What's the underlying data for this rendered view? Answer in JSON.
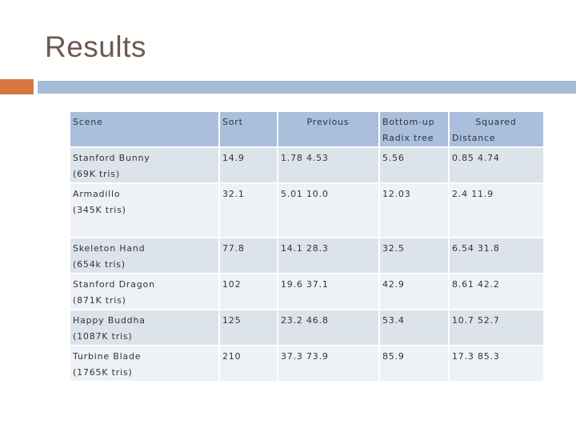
{
  "title": "Results",
  "table": {
    "headers": {
      "scene": "Scene",
      "sort": "Sort",
      "previous": "Previous",
      "bottom_up_1": "Bottom-up",
      "bottom_up_2": "Radix tree",
      "squared_1": "Squared",
      "squared_2": "Distance"
    },
    "rows": [
      {
        "name": "Stanford Bunny",
        "tris": "(69K tris)",
        "sort": "14.9",
        "previous": "1.78 4.53",
        "bottom_up": "5.56",
        "squared": "0.85 4.74"
      },
      {
        "name": "Armadillo",
        "tris": "(345K tris)",
        "sort": "32.1",
        "previous": "5.01 10.0",
        "bottom_up": "12.03",
        "squared": "2.4 11.9"
      },
      {
        "name": "Skeleton Hand",
        "tris": "(654k tris)",
        "sort": "77.8",
        "previous": "14.1 28.3",
        "bottom_up": "32.5",
        "squared": "6.54 31.8"
      },
      {
        "name": "Stanford Dragon",
        "tris": "(871K tris)",
        "sort": "102",
        "previous": "19.6 37.1",
        "bottom_up": "42.9",
        "squared": "8.61 42.2"
      },
      {
        "name": "Happy Buddha",
        "tris": "(1087K tris)",
        "sort": "125",
        "previous": "23.2 46.8",
        "bottom_up": "53.4",
        "squared": "10.7 52.7"
      },
      {
        "name": "Turbine Blade",
        "tris": "(1765K tris)",
        "sort": "210",
        "previous": "37.3 73.9",
        "bottom_up": "85.9",
        "squared": "17.3 85.3"
      }
    ]
  }
}
